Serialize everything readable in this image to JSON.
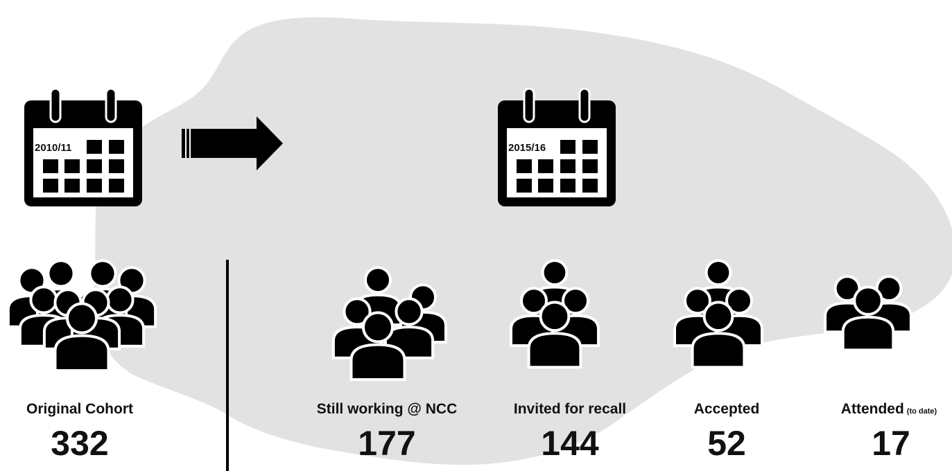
{
  "periods": [
    "2010/11",
    "2015/16"
  ],
  "groups": [
    {
      "label": "Original Cohort",
      "count": "332"
    },
    {
      "label": "Still working @ NCC",
      "count": "177"
    },
    {
      "label": "Invited for recall",
      "count": "144"
    },
    {
      "label": "Accepted",
      "count": "52"
    },
    {
      "label": "Attended",
      "note": "(to date)",
      "count": "17"
    }
  ]
}
